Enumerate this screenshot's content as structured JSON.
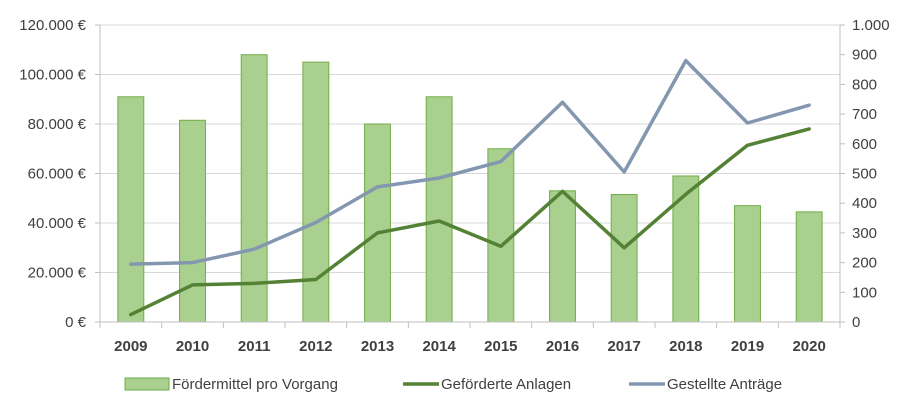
{
  "chart_data": {
    "type": "bar",
    "categories": [
      "2009",
      "2010",
      "2011",
      "2012",
      "2013",
      "2014",
      "2015",
      "2016",
      "2017",
      "2018",
      "2019",
      "2020"
    ],
    "series": [
      {
        "name": "Fördermittel pro Vorgang",
        "type": "bar",
        "axis": "left",
        "color": "#a9d08e",
        "edge_color": "#70ad47",
        "values": [
          91000,
          81500,
          108000,
          105000,
          80000,
          91000,
          70000,
          53000,
          51500,
          59000,
          47000,
          44500
        ]
      },
      {
        "name": "Geförderte Anlagen",
        "type": "line",
        "axis": "right",
        "color": "#548235",
        "values": [
          25,
          125,
          130,
          143,
          300,
          340,
          255,
          440,
          250,
          430,
          595,
          650
        ]
      },
      {
        "name": "Gestellte Anträge",
        "type": "line",
        "axis": "right",
        "color": "#8497b0",
        "values": [
          195,
          200,
          245,
          335,
          455,
          485,
          540,
          740,
          505,
          880,
          670,
          730
        ]
      }
    ],
    "y_left": {
      "ylim": [
        0,
        120000
      ],
      "ticks": [
        0,
        20000,
        40000,
        60000,
        80000,
        100000,
        120000
      ],
      "tick_labels": [
        "0 €",
        "20.000 €",
        "40.000 €",
        "60.000 €",
        "80.000 €",
        "100.000 €",
        "120.000 €"
      ]
    },
    "y_right": {
      "ylim": [
        0,
        1000
      ],
      "ticks": [
        0,
        100,
        200,
        300,
        400,
        500,
        600,
        700,
        800,
        900,
        1000
      ],
      "tick_labels": [
        "0",
        "100",
        "200",
        "300",
        "400",
        "500",
        "600",
        "700",
        "800",
        "900",
        "1.000"
      ]
    },
    "grid": true,
    "legend_position": "bottom"
  }
}
